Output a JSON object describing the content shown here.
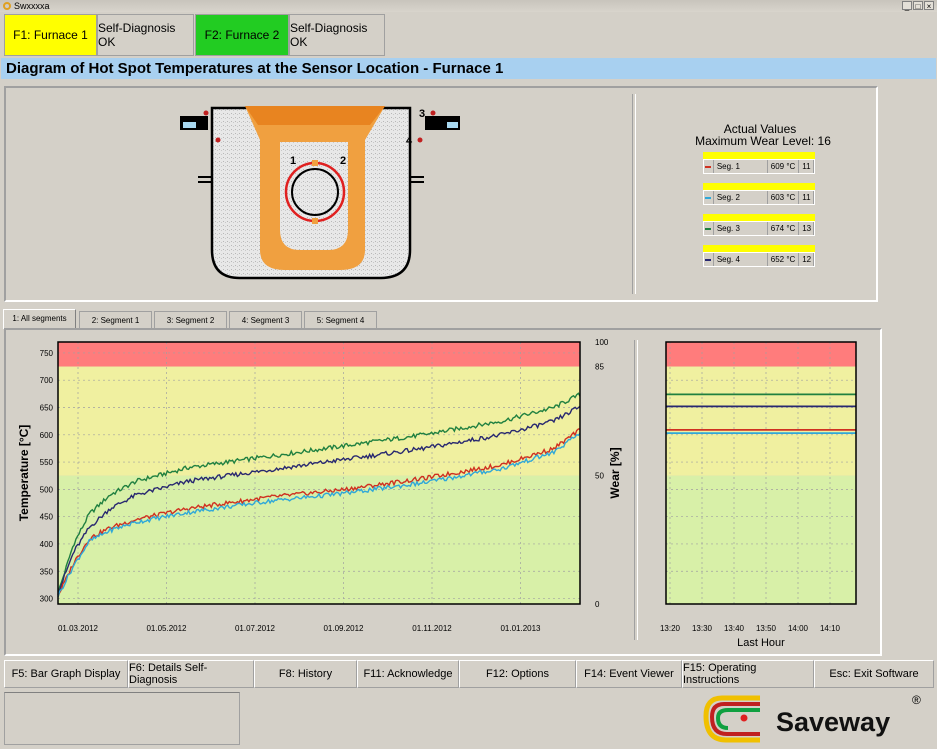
{
  "window": {
    "title": "Swxxxxa"
  },
  "top_buttons": [
    {
      "label": "F1: Furnace 1",
      "color": "#ffff00"
    },
    {
      "label": "Self-Diagnosis OK",
      "color": "#d4d0c8"
    },
    {
      "label": "F2: Furnace 2",
      "color": "#22cc22"
    },
    {
      "label": "Self-Diagnosis OK",
      "color": "#d4d0c8"
    }
  ],
  "page_title": "Diagram of Hot Spot Temperatures at the Sensor Location - Furnace 1",
  "furnace": {
    "sensor_labels": [
      "1",
      "2",
      "3",
      "4"
    ]
  },
  "actual_values": {
    "heading": "Actual Values",
    "max_wear_label": "Maximum Wear Level: 16",
    "segments": [
      {
        "name": "Seg. 1",
        "temp": "609 °C",
        "wear": "11",
        "color": "#d03020"
      },
      {
        "name": "Seg. 2",
        "temp": "603 °C",
        "wear": "11",
        "color": "#30a8d8"
      },
      {
        "name": "Seg. 3",
        "temp": "674 °C",
        "wear": "13",
        "color": "#208040"
      },
      {
        "name": "Seg. 4",
        "temp": "652 °C",
        "wear": "12",
        "color": "#282870"
      }
    ]
  },
  "tabs": [
    "1: All segments",
    "2: Segment 1",
    "3: Segment 2",
    "4: Segment 3",
    "5: Segment 4"
  ],
  "chart_data": [
    {
      "type": "line",
      "ylabel": "Temperature [°C]",
      "ylabel_right": "Wear [%]",
      "ylim": [
        290,
        770
      ],
      "yticks": [
        300,
        350,
        400,
        450,
        500,
        550,
        600,
        650,
        700,
        750
      ],
      "right_ticks": [
        "100",
        "85",
        "50",
        "0"
      ],
      "x_ticks": [
        "01.03.2012",
        "01.05.2012",
        "01.07.2012",
        "01.09.2012",
        "01.11.2012",
        "01.01.2013"
      ],
      "zones": [
        {
          "from": 725,
          "to": 770,
          "color": "#ff7c7c"
        },
        {
          "from": 525,
          "to": 725,
          "color": "#f0f0a0"
        },
        {
          "from": 290,
          "to": 525,
          "color": "#d8f0a8"
        }
      ],
      "series": [
        {
          "color": "#208040",
          "x": [
            0,
            0.03,
            0.06,
            0.1,
            0.15,
            0.25,
            0.4,
            0.55,
            0.7,
            0.85,
            0.95,
            1.0
          ],
          "values": [
            310,
            400,
            455,
            490,
            515,
            540,
            560,
            580,
            600,
            625,
            650,
            674
          ]
        },
        {
          "color": "#282870",
          "x": [
            0,
            0.03,
            0.06,
            0.1,
            0.15,
            0.25,
            0.4,
            0.55,
            0.7,
            0.85,
            0.95,
            1.0
          ],
          "values": [
            310,
            385,
            430,
            465,
            490,
            515,
            535,
            555,
            575,
            600,
            625,
            652
          ]
        },
        {
          "color": "#d03020",
          "x": [
            0,
            0.03,
            0.06,
            0.1,
            0.15,
            0.25,
            0.4,
            0.55,
            0.7,
            0.85,
            0.95,
            1.0
          ],
          "values": [
            305,
            365,
            410,
            430,
            445,
            465,
            485,
            500,
            520,
            545,
            575,
            609
          ]
        },
        {
          "color": "#30a8d8",
          "x": [
            0,
            0.03,
            0.06,
            0.1,
            0.15,
            0.25,
            0.4,
            0.55,
            0.7,
            0.85,
            0.95,
            1.0
          ],
          "values": [
            305,
            360,
            405,
            425,
            440,
            458,
            478,
            493,
            512,
            538,
            568,
            603
          ]
        }
      ]
    },
    {
      "type": "line",
      "xlabel": "Last Hour",
      "ylim": [
        290,
        770
      ],
      "x_ticks": [
        "13:20",
        "13:30",
        "13:40",
        "13:50",
        "14:00",
        "14:10"
      ],
      "series": [
        {
          "color": "#208040",
          "values": [
            674,
            674
          ]
        },
        {
          "color": "#282870",
          "values": [
            652,
            652
          ]
        },
        {
          "color": "#d03020",
          "values": [
            609,
            609
          ]
        },
        {
          "color": "#30a8d8",
          "values": [
            603,
            603
          ]
        }
      ]
    }
  ],
  "bottom_buttons": [
    "F5: Bar Graph Display",
    "F6: Details Self-Diagnosis",
    "F8: History",
    "F11: Acknowledge",
    "F12: Options",
    "F14: Event Viewer",
    "F15: Operating Instructions",
    "Esc: Exit Software"
  ],
  "logo": {
    "text": "Saveway",
    "mark": "®"
  }
}
